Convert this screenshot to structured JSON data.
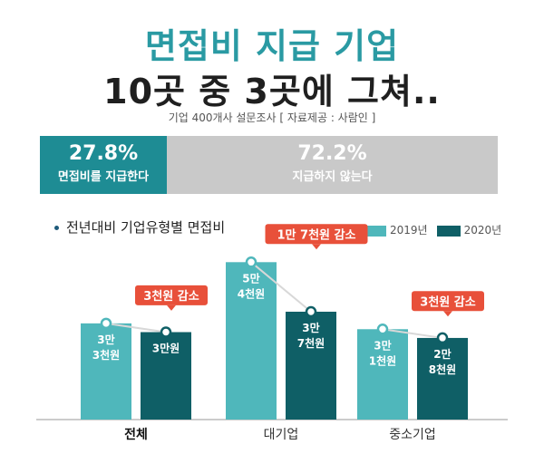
{
  "headline": {
    "line1": "면접비 지급 기업",
    "line2": "10곳 중 3곳에 그쳐..",
    "source": "기업 400개사 설문조사 [ 자료제공 : 사람인 ]"
  },
  "ratio": {
    "pay": {
      "percent_label": "27.8%",
      "label": "면접비를 지급한다",
      "value": 27.8
    },
    "nopay": {
      "percent_label": "72.2%",
      "label": "지급하지 않는다",
      "value": 72.2
    }
  },
  "colors": {
    "c2019": "#4fb7bb",
    "c2020": "#0f5f66",
    "callout": "#e8503a",
    "ratio_pay": "#1e8c94",
    "ratio_nopay": "#c9c9c9"
  },
  "chart_data": {
    "type": "bar",
    "title": "전년대비 기업유형별 면접비",
    "categories": [
      "전체",
      "대기업",
      "중소기업"
    ],
    "series": [
      {
        "name": "2019년",
        "values": [
          33000,
          54000,
          31000
        ],
        "labels": [
          "3만\n3천원",
          "5만\n4천원",
          "3만\n1천원"
        ]
      },
      {
        "name": "2020년",
        "values": [
          30000,
          37000,
          28000
        ],
        "labels": [
          "3만원",
          "3만\n7천원",
          "2만\n8천원"
        ]
      }
    ],
    "annotations": [
      "3천원 감소",
      "1만 7천원 감소",
      "3천원 감소"
    ],
    "ylim": [
      0,
      60000
    ],
    "legend": "top-right"
  }
}
